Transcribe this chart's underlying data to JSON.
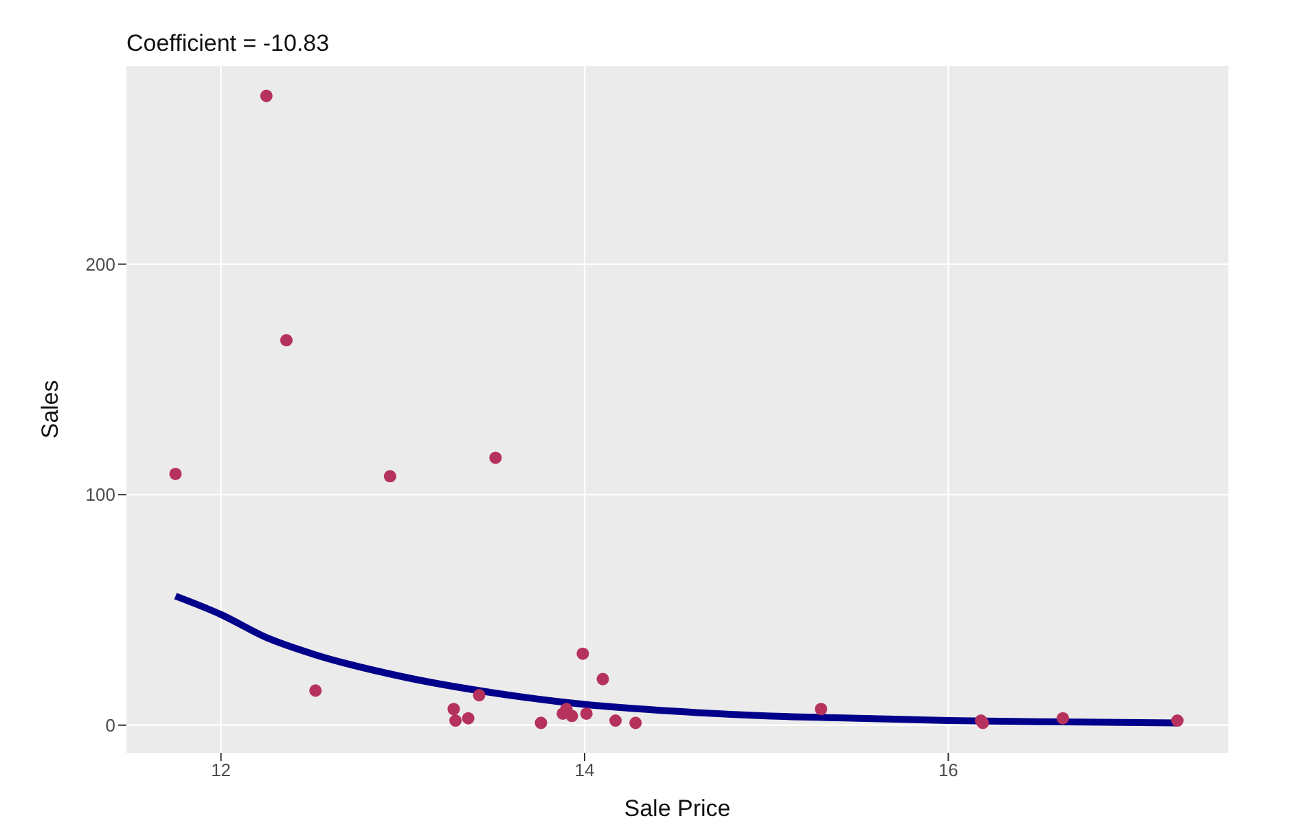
{
  "chart_data": {
    "type": "scatter",
    "title": "Coefficient = -10.83",
    "xlabel": "Sale Price",
    "ylabel": "Sales",
    "xlim": [
      11.48,
      17.54
    ],
    "xticks": [
      12,
      14,
      16
    ],
    "ylim": [
      -12,
      286
    ],
    "yticks": [
      0,
      100,
      200
    ],
    "grid": true,
    "series": [
      {
        "marker": "circle",
        "color": "#b5325c",
        "x": [
          11.75,
          12.25,
          12.36,
          12.93,
          13.51,
          12.52,
          13.28,
          13.29,
          13.36,
          13.42,
          13.76,
          13.9,
          13.88,
          13.93,
          14.01,
          13.99,
          14.1,
          14.17,
          14.28,
          15.3,
          16.18,
          16.19,
          16.63,
          17.26
        ],
        "values": [
          109,
          273,
          167,
          108,
          116,
          15,
          7,
          2,
          3,
          13,
          1,
          7,
          5,
          4,
          5,
          31,
          20,
          2,
          1,
          7,
          2,
          1,
          3,
          2
        ]
      },
      {
        "type": "line",
        "color": "#00008b",
        "x": [
          11.75,
          12,
          12.25,
          12.5,
          13,
          13.5,
          14,
          14.5,
          15,
          15.5,
          16,
          16.5,
          17.26
        ],
        "values": [
          56,
          48,
          38,
          31,
          21,
          14,
          9,
          6,
          4,
          3,
          2,
          1.5,
          1
        ]
      }
    ]
  }
}
